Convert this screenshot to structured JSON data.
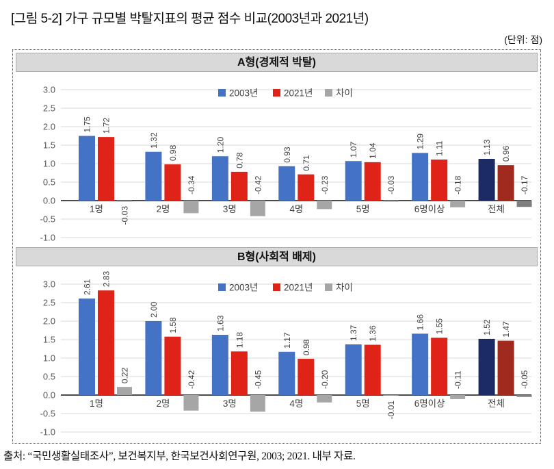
{
  "figure": {
    "title": "[그림 5-2] 가구 규모별 박탈지표의 평균 점수 비교(2003년과 2021년)",
    "unit_label": "(단위: 점)",
    "source": "출처: “국민생활실태조사”, 보건복지부, 한국보건사회연구원, 2003; 2021. 내부 자료."
  },
  "colors": {
    "series_2003": "#4472C4",
    "series_2021": "#DF2318",
    "series_diff": "#A6A6A6",
    "emphasis_2003": "#1C2B63",
    "emphasis_2021": "#A02A1E",
    "emphasis_diff": "#7F7F7F",
    "header_bg": "#D9D9D9",
    "gridline": "#D9D9D9",
    "axis": "#303030",
    "tick_label": "#595959",
    "value_label": "#404040",
    "category_label": "#404040"
  },
  "chart_data": [
    {
      "type": "bar",
      "title": "A형(경제적 박탈)",
      "categories": [
        "1명",
        "2명",
        "3명",
        "4명",
        "5명",
        "6명이상",
        "전체"
      ],
      "series": [
        {
          "name": "2003년",
          "values": [
            1.75,
            1.32,
            1.2,
            0.93,
            1.07,
            1.29,
            1.13
          ]
        },
        {
          "name": "2021년",
          "values": [
            1.72,
            0.98,
            0.78,
            0.71,
            1.04,
            1.11,
            0.96
          ]
        },
        {
          "name": "차이",
          "values": [
            -0.03,
            -0.34,
            -0.42,
            -0.23,
            -0.03,
            -0.18,
            -0.17
          ]
        }
      ],
      "ylim": [
        -1.0,
        3.0
      ],
      "ytick_step": 0.5,
      "legend_position": "top-center",
      "grid": true,
      "emphasized_category": "전체",
      "diff_label_below_axis_categories": [
        "1명"
      ]
    },
    {
      "type": "bar",
      "title": "B형(사회적 배제)",
      "categories": [
        "1명",
        "2명",
        "3명",
        "4명",
        "5명",
        "6명이상",
        "전체"
      ],
      "series": [
        {
          "name": "2003년",
          "values": [
            2.61,
            2.0,
            1.63,
            1.17,
            1.37,
            1.66,
            1.52
          ]
        },
        {
          "name": "2021년",
          "values": [
            2.83,
            1.58,
            1.18,
            0.98,
            1.36,
            1.55,
            1.47
          ]
        },
        {
          "name": "차이",
          "values": [
            0.22,
            -0.42,
            -0.45,
            -0.2,
            -0.01,
            -0.11,
            -0.05
          ]
        }
      ],
      "ylim": [
        -1.0,
        3.0
      ],
      "ytick_step": 0.5,
      "legend_position": "top-center",
      "grid": true,
      "emphasized_category": "전체",
      "diff_label_below_axis_categories": [
        "5명"
      ]
    }
  ]
}
